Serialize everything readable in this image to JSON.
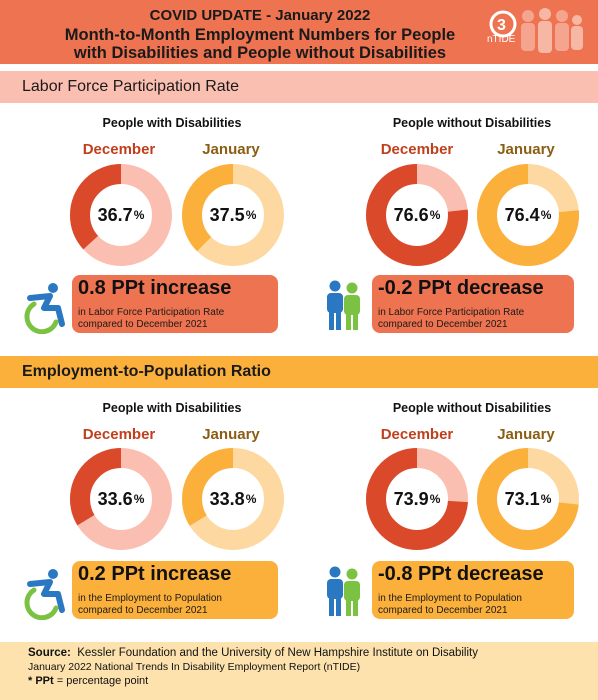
{
  "header": {
    "line1": "COVID UPDATE - January 2022",
    "line2a": "Month-to-Month Employment Numbers for People",
    "line2b": "with Disabilities and People without Disabilities",
    "logo_text": "nTIDE"
  },
  "colors": {
    "orange": "#ee7350",
    "dark_red": "#d9492a",
    "pink": "#fbbfb2",
    "yellow": "#fbb03b",
    "light_yellow": "#fdd8a0"
  },
  "sections": [
    {
      "title": "Labor Force Participation Rate",
      "groups": [
        {
          "title": "People with Disabilities",
          "dec_label": "December",
          "dec_value": 36.7,
          "dec_text": "36.7",
          "jan_label": "January",
          "jan_value": 37.5,
          "jan_text": "37.5",
          "change": "0.8 PPt increase",
          "note1": "in Labor Force Participation Rate",
          "note2": "compared to December 2021",
          "icon": "wheelchair-user-icon"
        },
        {
          "title": "People without Disabilities",
          "dec_label": "December",
          "dec_value": 76.6,
          "dec_text": "76.6",
          "jan_label": "January",
          "jan_value": 76.4,
          "jan_text": "76.4",
          "change": "-0.2 PPt decrease",
          "note1": "in Labor Force Participation Rate",
          "note2": "compared to December 2021",
          "icon": "two-people-icon"
        }
      ]
    },
    {
      "title": "Employment-to-Population Ratio",
      "groups": [
        {
          "title": "People with Disabilities",
          "dec_label": "December",
          "dec_value": 33.6,
          "dec_text": "33.6",
          "jan_label": "January",
          "jan_value": 33.8,
          "jan_text": "33.8",
          "change": "0.2 PPt increase",
          "note1": "in the Employment to Population",
          "note2": "compared to December 2021",
          "icon": "wheelchair-user-icon"
        },
        {
          "title": "People without Disabilities",
          "dec_label": "December",
          "dec_value": 73.9,
          "dec_text": "73.9",
          "jan_label": "January",
          "jan_value": 73.1,
          "jan_text": "73.1",
          "change": "-0.8 PPt decrease",
          "note1": "in the Employment to Population",
          "note2": "compared to December 2021",
          "icon": "two-people-icon"
        }
      ]
    }
  ],
  "footer": {
    "source_label": "Source:",
    "source_text": "Kessler Foundation and the University of New Hampshire Institute on Disability",
    "report": "January 2022 National Trends In Disability Employment Report (nTIDE)",
    "ppt_label": "* PPt",
    "ppt_text": "= percentage point"
  }
}
